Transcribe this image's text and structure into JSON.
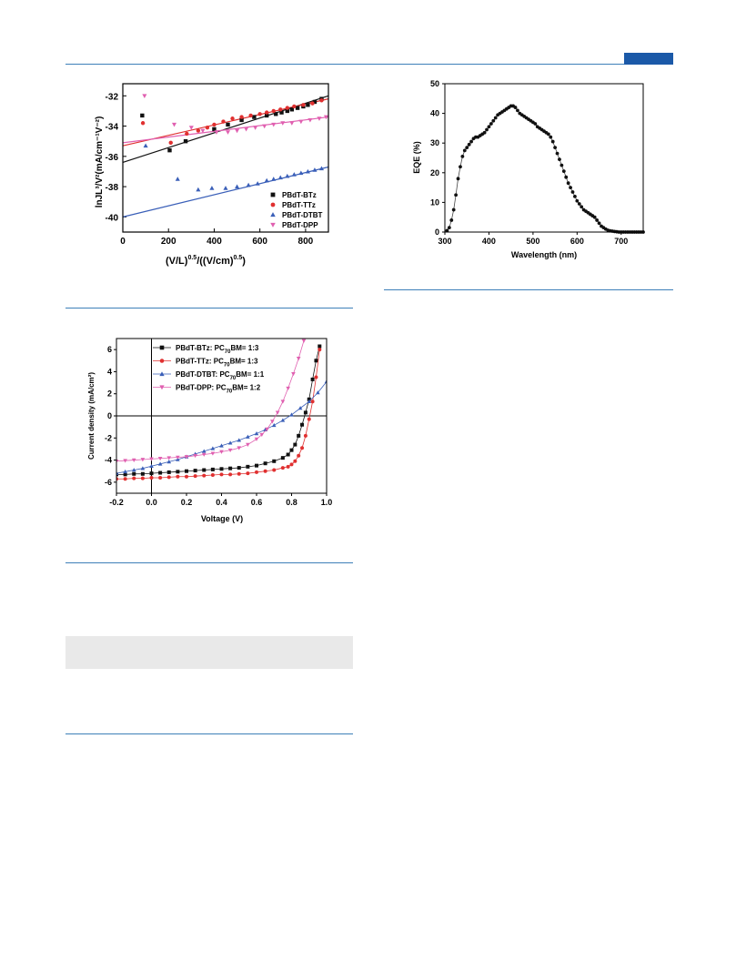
{
  "colors": {
    "rule": "#3d7fb8",
    "tab": "#1b59a8",
    "band": "#e9e9e9"
  },
  "chart_data": [
    {
      "id": "sclc",
      "type": "scatter",
      "xlabel_main": "(V/L)",
      "xlabel_sup1": "0.5",
      "xlabel_mid": "/((V/cm)",
      "xlabel_sup2": "0.5",
      "xlabel_end": ")",
      "ylabel": "lnJL³/V²(mA/cm⁻¹V⁻²)",
      "xlim": [
        0,
        900
      ],
      "ylim": [
        -41,
        -31.2
      ],
      "xticks": [
        0,
        200,
        400,
        600,
        800
      ],
      "yticks": [
        -40,
        -38,
        -36,
        -34,
        -32
      ],
      "legend_position": "bottom-right",
      "series": [
        {
          "name": "PBdT-BTz",
          "color": "#111111",
          "marker": "square",
          "x": [
            85,
            205,
            275,
            400,
            460,
            520,
            575,
            630,
            670,
            695,
            720,
            740,
            765,
            790,
            810,
            840,
            870
          ],
          "y": [
            -33.3,
            -35.6,
            -35.0,
            -34.2,
            -33.9,
            -33.6,
            -33.4,
            -33.3,
            -33.2,
            -33.1,
            -33.0,
            -32.9,
            -32.8,
            -32.7,
            -32.6,
            -32.4,
            -32.2
          ],
          "fit": [
            [
              0,
              -36.4
            ],
            [
              900,
              -32.0
            ]
          ],
          "fit_color": "#111111"
        },
        {
          "name": "PBdT-TTz",
          "color": "#e03030",
          "marker": "circle",
          "x": [
            88,
            210,
            280,
            330,
            370,
            400,
            440,
            480,
            520,
            560,
            600,
            630,
            660,
            690,
            720,
            750,
            790,
            830,
            870
          ],
          "y": [
            -33.8,
            -35.1,
            -34.5,
            -34.3,
            -34.1,
            -33.9,
            -33.7,
            -33.5,
            -33.4,
            -33.3,
            -33.2,
            -33.1,
            -33.0,
            -32.9,
            -32.8,
            -32.7,
            -32.6,
            -32.5,
            -32.3
          ],
          "fit": [
            [
              0,
              -35.3
            ],
            [
              900,
              -32.2
            ]
          ],
          "fit_color": "#e03030"
        },
        {
          "name": "PBdT-DTBT",
          "color": "#3a5fb8",
          "marker": "triangle-up",
          "x": [
            100,
            240,
            330,
            390,
            450,
            500,
            550,
            590,
            630,
            660,
            690,
            720,
            750,
            780,
            810,
            840,
            870
          ],
          "y": [
            -35.3,
            -37.5,
            -38.2,
            -38.1,
            -38.1,
            -38.0,
            -37.9,
            -37.8,
            -37.6,
            -37.5,
            -37.4,
            -37.3,
            -37.2,
            -37.1,
            -37.0,
            -36.9,
            -36.8
          ],
          "fit": [
            [
              0,
              -40.0
            ],
            [
              900,
              -36.7
            ]
          ],
          "fit_color": "#3a5fb8"
        },
        {
          "name": "PBdT-DPP",
          "color": "#e060b0",
          "marker": "triangle-down",
          "x": [
            95,
            225,
            300,
            350,
            410,
            460,
            500,
            540,
            580,
            620,
            660,
            700,
            740,
            780,
            820,
            860,
            890
          ],
          "y": [
            -32.0,
            -33.9,
            -34.1,
            -34.3,
            -34.4,
            -34.4,
            -34.3,
            -34.2,
            -34.1,
            -34.0,
            -33.9,
            -33.8,
            -33.8,
            -33.7,
            -33.6,
            -33.5,
            -33.4
          ],
          "fit": [
            [
              0,
              -35.1
            ],
            [
              900,
              -33.4
            ]
          ],
          "fit_color": "#e060b0"
        }
      ]
    },
    {
      "id": "eqe",
      "type": "line",
      "xlabel": "Wavelength (nm)",
      "ylabel": "EQE (%)",
      "xlim": [
        300,
        750
      ],
      "ylim": [
        0,
        50
      ],
      "xticks": [
        300,
        400,
        500,
        600,
        700
      ],
      "yticks": [
        0,
        10,
        20,
        30,
        40,
        50
      ],
      "series": [
        {
          "color": "#111111",
          "marker": "circle",
          "x": [
            305,
            310,
            315,
            320,
            325,
            330,
            335,
            340,
            345,
            350,
            355,
            360,
            365,
            370,
            375,
            380,
            385,
            390,
            395,
            400,
            405,
            410,
            415,
            420,
            425,
            430,
            435,
            440,
            445,
            450,
            455,
            460,
            465,
            470,
            475,
            480,
            485,
            490,
            495,
            500,
            505,
            510,
            515,
            520,
            525,
            530,
            535,
            540,
            545,
            550,
            555,
            560,
            565,
            570,
            575,
            580,
            585,
            590,
            595,
            600,
            605,
            610,
            615,
            620,
            625,
            630,
            635,
            640,
            645,
            650,
            655,
            660,
            665,
            670,
            675,
            680,
            685,
            690,
            695,
            700,
            705,
            710,
            715,
            720,
            725,
            730,
            735,
            740,
            745,
            750
          ],
          "y": [
            0.5,
            1.5,
            4,
            7.5,
            12.5,
            18,
            22,
            25.5,
            27.5,
            28.5,
            29.5,
            30.5,
            31.5,
            32,
            32,
            32.5,
            33,
            33.5,
            34.5,
            35.5,
            36.5,
            37.5,
            38.5,
            39.5,
            40,
            40.5,
            41,
            41.5,
            42,
            42.5,
            42.5,
            42,
            41,
            40,
            39.5,
            39,
            38.5,
            38,
            37.5,
            37,
            36.5,
            35.5,
            35,
            34.5,
            34,
            33.5,
            33,
            32,
            30.5,
            28.5,
            26.5,
            24.5,
            22.5,
            20.5,
            18.5,
            16.5,
            15,
            13.5,
            12,
            10.5,
            9.5,
            8.5,
            7.5,
            7,
            6.5,
            6,
            5.5,
            5,
            4,
            3,
            2,
            1.5,
            1,
            0.6,
            0.4,
            0.3,
            0.2,
            0.1,
            0,
            0,
            0,
            0,
            0,
            0,
            0,
            0,
            0,
            0,
            0,
            0
          ]
        }
      ]
    },
    {
      "id": "jv",
      "type": "line",
      "xlabel": "Voltage (V)",
      "ylabel": "Current density (mA/cm²)",
      "xlim": [
        -0.2,
        1.0
      ],
      "ylim": [
        -7,
        7
      ],
      "xticks": [
        -0.2,
        0.0,
        0.2,
        0.4,
        0.6,
        0.8,
        1.0
      ],
      "xtick_labels": [
        "-0.2",
        "0.0",
        "0.2",
        "0.4",
        "0.6",
        "0.8",
        "1.0"
      ],
      "yticks": [
        -6,
        -4,
        -2,
        0,
        2,
        4,
        6
      ],
      "legend_position": "top-left",
      "series": [
        {
          "name_a": "PBdT-BTz: PC",
          "name_sub": "70",
          "name_b": "BM= 1:3",
          "color": "#111111",
          "marker": "square",
          "x": [
            -0.2,
            -0.15,
            -0.1,
            -0.05,
            0,
            0.05,
            0.1,
            0.15,
            0.2,
            0.25,
            0.3,
            0.35,
            0.4,
            0.45,
            0.5,
            0.55,
            0.6,
            0.65,
            0.7,
            0.75,
            0.78,
            0.8,
            0.82,
            0.84,
            0.86,
            0.88,
            0.9,
            0.92,
            0.94,
            0.96
          ],
          "y": [
            -5.3,
            -5.3,
            -5.25,
            -5.25,
            -5.2,
            -5.15,
            -5.1,
            -5.05,
            -5.0,
            -4.95,
            -4.9,
            -4.85,
            -4.8,
            -4.75,
            -4.7,
            -4.6,
            -4.5,
            -4.3,
            -4.1,
            -3.8,
            -3.5,
            -3.1,
            -2.6,
            -1.8,
            -0.8,
            0.3,
            1.5,
            3.3,
            5.0,
            6.3
          ]
        },
        {
          "name_a": "PBdT-TTz: PC",
          "name_sub": "70",
          "name_b": "BM= 1:3",
          "color": "#e03030",
          "marker": "circle",
          "x": [
            -0.2,
            -0.15,
            -0.1,
            -0.05,
            0,
            0.05,
            0.1,
            0.15,
            0.2,
            0.25,
            0.3,
            0.35,
            0.4,
            0.45,
            0.5,
            0.55,
            0.6,
            0.65,
            0.7,
            0.75,
            0.78,
            0.8,
            0.82,
            0.84,
            0.86,
            0.88,
            0.9,
            0.92,
            0.94,
            0.96
          ],
          "y": [
            -5.7,
            -5.7,
            -5.65,
            -5.65,
            -5.6,
            -5.6,
            -5.55,
            -5.5,
            -5.5,
            -5.45,
            -5.4,
            -5.35,
            -5.3,
            -5.3,
            -5.25,
            -5.2,
            -5.1,
            -5.0,
            -4.9,
            -4.7,
            -4.6,
            -4.4,
            -4.1,
            -3.6,
            -2.9,
            -1.8,
            -0.3,
            1.3,
            3.5,
            6.0
          ]
        },
        {
          "name_a": "PBdT-DTBT: PC",
          "name_sub": "70",
          "name_b": "BM= 1:1",
          "color": "#3a5fb8",
          "marker": "triangle-up",
          "x": [
            -0.2,
            -0.15,
            -0.1,
            -0.05,
            0,
            0.05,
            0.1,
            0.15,
            0.2,
            0.25,
            0.3,
            0.35,
            0.4,
            0.45,
            0.5,
            0.55,
            0.6,
            0.65,
            0.7,
            0.75,
            0.8,
            0.85,
            0.9,
            0.95,
            1.0
          ],
          "y": [
            -5.2,
            -5.05,
            -4.9,
            -4.75,
            -4.55,
            -4.35,
            -4.15,
            -3.95,
            -3.7,
            -3.45,
            -3.2,
            -2.95,
            -2.7,
            -2.45,
            -2.2,
            -1.9,
            -1.6,
            -1.25,
            -0.85,
            -0.4,
            0.1,
            0.7,
            1.3,
            2.1,
            3.1
          ]
        },
        {
          "name_a": "PBdT-DPP: PC",
          "name_sub": "70",
          "name_b": "BM= 1:2",
          "color": "#e060b0",
          "marker": "triangle-down",
          "x": [
            -0.2,
            -0.15,
            -0.1,
            -0.05,
            0,
            0.05,
            0.1,
            0.15,
            0.2,
            0.25,
            0.3,
            0.35,
            0.4,
            0.45,
            0.5,
            0.55,
            0.6,
            0.63,
            0.66,
            0.69,
            0.72,
            0.75,
            0.78,
            0.81,
            0.84,
            0.87
          ],
          "y": [
            -4.1,
            -4.05,
            -4.0,
            -3.95,
            -3.9,
            -3.85,
            -3.8,
            -3.75,
            -3.7,
            -3.6,
            -3.5,
            -3.4,
            -3.25,
            -3.1,
            -2.9,
            -2.6,
            -2.1,
            -1.7,
            -1.2,
            -0.5,
            0.3,
            1.3,
            2.5,
            3.8,
            5.2,
            6.8
          ]
        }
      ]
    }
  ]
}
